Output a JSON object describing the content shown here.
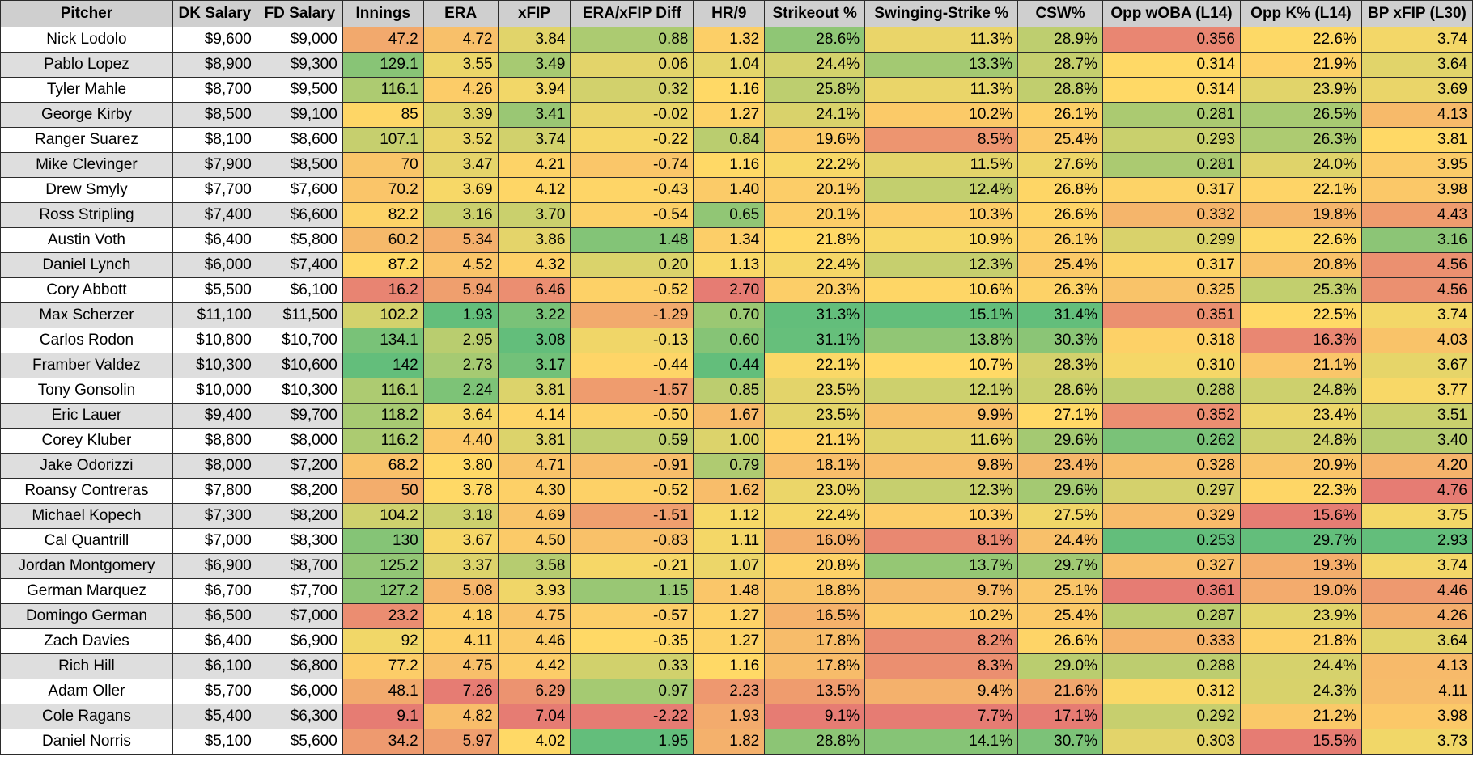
{
  "colors": {
    "low_good": "#63be7b",
    "mid": "#ffd966",
    "high_bad": "#e67c73"
  },
  "headers": [
    "Pitcher",
    "DK Salary",
    "FD Salary",
    "Innings",
    "ERA",
    "xFIP",
    "ERA/xFIP Diff",
    "HR/9",
    "Strikeout %",
    "Swinging-Strike %",
    "CSW%",
    "Opp wOBA (L14)",
    "Opp K% (L14)",
    "BP xFIP (L30)"
  ],
  "rows": [
    [
      "Nick Lodolo",
      "$9,600",
      "$9,000",
      "47.2",
      "4.72",
      "3.84",
      "0.88",
      "1.32",
      "28.6%",
      "11.3%",
      "28.9%",
      "0.356",
      "22.6%",
      "3.74"
    ],
    [
      "Pablo Lopez",
      "$8,900",
      "$9,300",
      "129.1",
      "3.55",
      "3.49",
      "0.06",
      "1.04",
      "24.4%",
      "13.3%",
      "28.7%",
      "0.314",
      "21.9%",
      "3.64"
    ],
    [
      "Tyler Mahle",
      "$8,700",
      "$9,500",
      "116.1",
      "4.26",
      "3.94",
      "0.32",
      "1.16",
      "25.8%",
      "11.3%",
      "28.8%",
      "0.314",
      "23.9%",
      "3.69"
    ],
    [
      "George Kirby",
      "$8,500",
      "$9,100",
      "85",
      "3.39",
      "3.41",
      "-0.02",
      "1.27",
      "24.1%",
      "10.2%",
      "26.1%",
      "0.281",
      "26.5%",
      "4.13"
    ],
    [
      "Ranger Suarez",
      "$8,100",
      "$8,600",
      "107.1",
      "3.52",
      "3.74",
      "-0.22",
      "0.84",
      "19.6%",
      "8.5%",
      "25.4%",
      "0.293",
      "26.3%",
      "3.81"
    ],
    [
      "Mike Clevinger",
      "$7,900",
      "$8,500",
      "70",
      "3.47",
      "4.21",
      "-0.74",
      "1.16",
      "22.2%",
      "11.5%",
      "27.6%",
      "0.281",
      "24.0%",
      "3.95"
    ],
    [
      "Drew Smyly",
      "$7,700",
      "$7,600",
      "70.2",
      "3.69",
      "4.12",
      "-0.43",
      "1.40",
      "20.1%",
      "12.4%",
      "26.8%",
      "0.317",
      "22.1%",
      "3.98"
    ],
    [
      "Ross Stripling",
      "$7,400",
      "$6,600",
      "82.2",
      "3.16",
      "3.70",
      "-0.54",
      "0.65",
      "20.1%",
      "10.3%",
      "26.6%",
      "0.332",
      "19.8%",
      "4.43"
    ],
    [
      "Austin Voth",
      "$6,400",
      "$5,800",
      "60.2",
      "5.34",
      "3.86",
      "1.48",
      "1.34",
      "21.8%",
      "10.9%",
      "26.1%",
      "0.299",
      "22.6%",
      "3.16"
    ],
    [
      "Daniel Lynch",
      "$6,000",
      "$7,400",
      "87.2",
      "4.52",
      "4.32",
      "0.20",
      "1.13",
      "22.4%",
      "12.3%",
      "25.4%",
      "0.317",
      "20.8%",
      "4.56"
    ],
    [
      "Cory Abbott",
      "$5,500",
      "$6,100",
      "16.2",
      "5.94",
      "6.46",
      "-0.52",
      "2.70",
      "20.3%",
      "10.6%",
      "26.3%",
      "0.325",
      "25.3%",
      "4.56"
    ],
    [
      "Max Scherzer",
      "$11,100",
      "$11,500",
      "102.2",
      "1.93",
      "3.22",
      "-1.29",
      "0.70",
      "31.3%",
      "15.1%",
      "31.4%",
      "0.351",
      "22.5%",
      "3.74"
    ],
    [
      "Carlos Rodon",
      "$10,800",
      "$10,700",
      "134.1",
      "2.95",
      "3.08",
      "-0.13",
      "0.60",
      "31.1%",
      "13.8%",
      "30.3%",
      "0.318",
      "16.3%",
      "4.03"
    ],
    [
      "Framber Valdez",
      "$10,300",
      "$10,600",
      "142",
      "2.73",
      "3.17",
      "-0.44",
      "0.44",
      "22.1%",
      "10.7%",
      "28.3%",
      "0.310",
      "21.1%",
      "3.67"
    ],
    [
      "Tony Gonsolin",
      "$10,000",
      "$10,300",
      "116.1",
      "2.24",
      "3.81",
      "-1.57",
      "0.85",
      "23.5%",
      "12.1%",
      "28.6%",
      "0.288",
      "24.8%",
      "3.77"
    ],
    [
      "Eric Lauer",
      "$9,400",
      "$9,700",
      "118.2",
      "3.64",
      "4.14",
      "-0.50",
      "1.67",
      "23.5%",
      "9.9%",
      "27.1%",
      "0.352",
      "23.4%",
      "3.51"
    ],
    [
      "Corey Kluber",
      "$8,800",
      "$8,000",
      "116.2",
      "4.40",
      "3.81",
      "0.59",
      "1.00",
      "21.1%",
      "11.6%",
      "29.6%",
      "0.262",
      "24.8%",
      "3.40"
    ],
    [
      "Jake Odorizzi",
      "$8,000",
      "$7,200",
      "68.2",
      "3.80",
      "4.71",
      "-0.91",
      "0.79",
      "18.1%",
      "9.8%",
      "23.4%",
      "0.328",
      "20.9%",
      "4.20"
    ],
    [
      "Roansy Contreras",
      "$7,800",
      "$8,200",
      "50",
      "3.78",
      "4.30",
      "-0.52",
      "1.62",
      "23.0%",
      "12.3%",
      "29.6%",
      "0.297",
      "22.3%",
      "4.76"
    ],
    [
      "Michael Kopech",
      "$7,300",
      "$8,200",
      "104.2",
      "3.18",
      "4.69",
      "-1.51",
      "1.12",
      "22.4%",
      "10.3%",
      "27.5%",
      "0.329",
      "15.6%",
      "3.75"
    ],
    [
      "Cal Quantrill",
      "$7,000",
      "$8,300",
      "130",
      "3.67",
      "4.50",
      "-0.83",
      "1.11",
      "16.0%",
      "8.1%",
      "24.4%",
      "0.253",
      "29.7%",
      "2.93"
    ],
    [
      "Jordan Montgomery",
      "$6,900",
      "$8,700",
      "125.2",
      "3.37",
      "3.58",
      "-0.21",
      "1.07",
      "20.8%",
      "13.7%",
      "29.7%",
      "0.327",
      "19.3%",
      "3.74"
    ],
    [
      "German Marquez",
      "$6,700",
      "$7,700",
      "127.2",
      "5.08",
      "3.93",
      "1.15",
      "1.48",
      "18.8%",
      "9.7%",
      "25.1%",
      "0.361",
      "19.0%",
      "4.46"
    ],
    [
      "Domingo German",
      "$6,500",
      "$7,000",
      "23.2",
      "4.18",
      "4.75",
      "-0.57",
      "1.27",
      "16.5%",
      "10.2%",
      "25.4%",
      "0.287",
      "23.9%",
      "4.26"
    ],
    [
      "Zach Davies",
      "$6,400",
      "$6,900",
      "92",
      "4.11",
      "4.46",
      "-0.35",
      "1.27",
      "17.8%",
      "8.2%",
      "26.6%",
      "0.333",
      "21.8%",
      "3.64"
    ],
    [
      "Rich Hill",
      "$6,100",
      "$6,800",
      "77.2",
      "4.75",
      "4.42",
      "0.33",
      "1.16",
      "17.8%",
      "8.3%",
      "29.0%",
      "0.288",
      "24.4%",
      "4.13"
    ],
    [
      "Adam Oller",
      "$5,700",
      "$6,000",
      "48.1",
      "7.26",
      "6.29",
      "0.97",
      "2.23",
      "13.5%",
      "9.4%",
      "21.6%",
      "0.312",
      "24.3%",
      "4.11"
    ],
    [
      "Cole Ragans",
      "$5,400",
      "$6,300",
      "9.1",
      "4.82",
      "7.04",
      "-2.22",
      "1.93",
      "9.1%",
      "7.7%",
      "17.1%",
      "0.292",
      "21.2%",
      "3.98"
    ],
    [
      "Daniel Norris",
      "$5,100",
      "$5,600",
      "34.2",
      "5.97",
      "4.02",
      "1.95",
      "1.82",
      "28.8%",
      "14.1%",
      "30.7%",
      "0.303",
      "15.5%",
      "3.73"
    ]
  ]
}
